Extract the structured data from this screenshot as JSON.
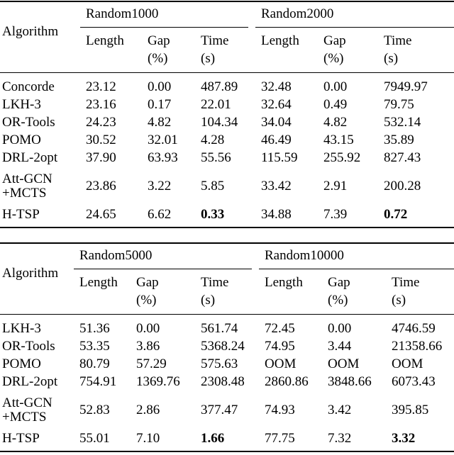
{
  "tables": [
    {
      "header": {
        "first": "Algorithm",
        "groups": [
          "Random1000",
          "Random2000"
        ],
        "columns": [
          [
            "Length"
          ],
          [
            "Gap",
            "(%)"
          ],
          [
            "Time",
            "(s)"
          ],
          [
            "Length"
          ],
          [
            "Gap",
            "(%)"
          ],
          [
            "Time",
            "(s)"
          ]
        ]
      },
      "rows": [
        {
          "algorithm": [
            "Concorde"
          ],
          "cells": [
            "23.12",
            "0.00",
            "487.89",
            "32.48",
            "0.00",
            "7949.97"
          ]
        },
        {
          "algorithm": [
            "LKH-3"
          ],
          "cells": [
            "23.16",
            "0.17",
            "22.01",
            "32.64",
            "0.49",
            "79.75"
          ]
        },
        {
          "algorithm": [
            "OR-Tools"
          ],
          "cells": [
            "24.23",
            "4.82",
            "104.34",
            "34.04",
            "4.82",
            "532.14"
          ]
        },
        {
          "algorithm": [
            "POMO"
          ],
          "cells": [
            "30.52",
            "32.01",
            "4.28",
            "46.49",
            "43.15",
            "35.89"
          ]
        },
        {
          "algorithm": [
            "DRL-2opt"
          ],
          "cells": [
            "37.90",
            "63.93",
            "55.56",
            "115.59",
            "255.92",
            "827.43"
          ]
        },
        {
          "algorithm": [
            "Att-GCN",
            "+MCTS"
          ],
          "cells": [
            "23.86",
            "3.22",
            "5.85",
            "33.42",
            "2.91",
            "200.28"
          ]
        },
        {
          "algorithm": [
            "H-TSP"
          ],
          "cells": [
            "24.65",
            "6.62",
            "0.33",
            "34.88",
            "7.39",
            "0.72"
          ]
        }
      ],
      "bold_cells": [
        {
          "row": 6,
          "col": 2
        },
        {
          "row": 6,
          "col": 5
        }
      ]
    },
    {
      "header": {
        "first": "Algorithm",
        "groups": [
          "Random5000",
          "Random10000"
        ],
        "columns": [
          [
            "Length"
          ],
          [
            "Gap",
            "(%)"
          ],
          [
            "Time",
            "(s)"
          ],
          [
            "Length"
          ],
          [
            "Gap",
            "(%)"
          ],
          [
            "Time",
            "(s)"
          ]
        ]
      },
      "rows": [
        {
          "algorithm": [
            "LKH-3"
          ],
          "cells": [
            "51.36",
            "0.00",
            "561.74",
            "72.45",
            "0.00",
            "4746.59"
          ]
        },
        {
          "algorithm": [
            "OR-Tools"
          ],
          "cells": [
            "53.35",
            "3.86",
            "5368.24",
            "74.95",
            "3.44",
            "21358.66"
          ]
        },
        {
          "algorithm": [
            "POMO"
          ],
          "cells": [
            "80.79",
            "57.29",
            "575.63",
            "OOM",
            "OOM",
            "OOM"
          ]
        },
        {
          "algorithm": [
            "DRL-2opt"
          ],
          "cells": [
            "754.91",
            "1369.76",
            "2308.48",
            "2860.86",
            "3848.66",
            "6073.43"
          ]
        },
        {
          "algorithm": [
            "Att-GCN",
            "+MCTS"
          ],
          "cells": [
            "52.83",
            "2.86",
            "377.47",
            "74.93",
            "3.42",
            "395.85"
          ]
        },
        {
          "algorithm": [
            "H-TSP"
          ],
          "cells": [
            "55.01",
            "7.10",
            "1.66",
            "77.75",
            "7.32",
            "3.32"
          ]
        }
      ],
      "bold_cells": [
        {
          "row": 5,
          "col": 2
        },
        {
          "row": 5,
          "col": 5
        }
      ]
    }
  ]
}
